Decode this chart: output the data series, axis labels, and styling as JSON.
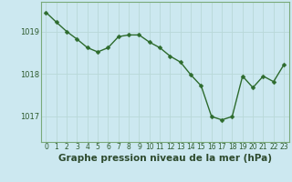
{
  "x": [
    0,
    1,
    2,
    3,
    4,
    5,
    6,
    7,
    8,
    9,
    10,
    11,
    12,
    13,
    14,
    15,
    16,
    17,
    18,
    19,
    20,
    21,
    22,
    23
  ],
  "y": [
    1019.45,
    1019.22,
    1019.0,
    1018.82,
    1018.62,
    1018.52,
    1018.62,
    1018.88,
    1018.92,
    1018.92,
    1018.75,
    1018.62,
    1018.42,
    1018.28,
    1017.98,
    1017.72,
    1017.0,
    1016.92,
    1017.0,
    1017.95,
    1017.68,
    1017.95,
    1017.82,
    1018.22
  ],
  "line_color": "#2d6b2d",
  "marker_color": "#2d6b2d",
  "bg_color": "#cce8f0",
  "grid_color": "#b8d8d8",
  "xlabel": "Graphe pression niveau de la mer (hPa)",
  "xlabel_fontsize": 7.5,
  "yticks": [
    1017,
    1018,
    1019
  ],
  "ylim": [
    1016.4,
    1019.7
  ],
  "xlim": [
    -0.5,
    23.5
  ],
  "xtick_labels": [
    "0",
    "1",
    "2",
    "3",
    "4",
    "5",
    "6",
    "7",
    "8",
    "9",
    "10",
    "11",
    "12",
    "13",
    "14",
    "15",
    "16",
    "17",
    "18",
    "19",
    "20",
    "21",
    "22",
    "23"
  ],
  "ytick_fontsize": 6.0,
  "xtick_fontsize": 5.5,
  "linewidth": 1.0,
  "markersize": 2.5,
  "grid_linewidth": 0.6
}
